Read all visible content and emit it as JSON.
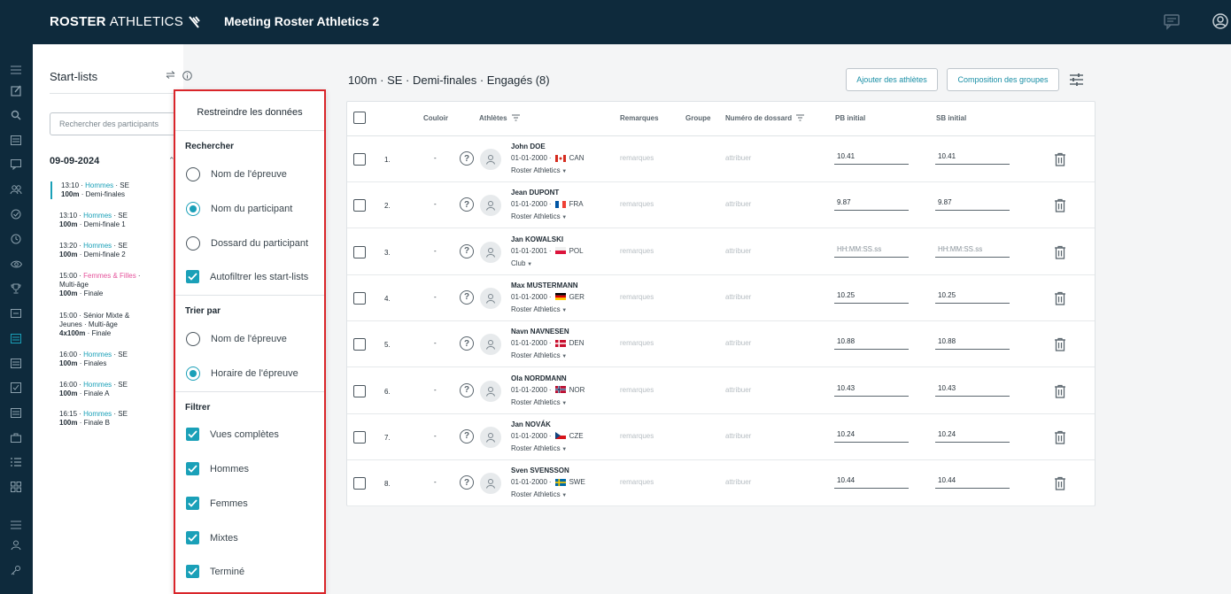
{
  "header": {
    "logo_bold": "ROSTER",
    "logo_light": "ATHLETICS",
    "meeting_title": "Meeting Roster Athletics 2"
  },
  "startlists": {
    "title": "Start-lists",
    "search_placeholder": "Rechercher des participants",
    "date": "09-09-2024",
    "events": [
      {
        "time": "13:10",
        "cat": "Hommes",
        "catType": "c",
        "age": "SE",
        "line2b": "100m",
        "line2": "Demi-finales",
        "selected": true
      },
      {
        "time": "13:10",
        "cat": "Hommes",
        "catType": "c",
        "age": "SE",
        "line2b": "100m",
        "line2": "Demi-finale 1"
      },
      {
        "time": "13:20",
        "cat": "Hommes",
        "catType": "c",
        "age": "SE",
        "line2b": "100m",
        "line2": "Demi-finale 2"
      },
      {
        "time": "15:00",
        "cat": "Femmes & Filles",
        "catType": "p",
        "age": "",
        "line1b": "Multi-âge",
        "line2b": "100m",
        "line2": "Finale"
      },
      {
        "time": "15:00",
        "cat": "Sénior Mixte &",
        "catType": "n",
        "age": "",
        "line1b": "Jeunes · Multi-âge",
        "line2b": "4x100m",
        "line2": "Finale"
      },
      {
        "time": "16:00",
        "cat": "Hommes",
        "catType": "c",
        "age": "SE",
        "line2b": "100m",
        "line2": "Finales"
      },
      {
        "time": "16:00",
        "cat": "Hommes",
        "catType": "c",
        "age": "SE",
        "line2b": "100m",
        "line2": "Finale A"
      },
      {
        "time": "16:15",
        "cat": "Hommes",
        "catType": "c",
        "age": "SE",
        "line2b": "100m",
        "line2": "Finale B"
      }
    ]
  },
  "main": {
    "title": "100m · SE · Demi-finales · Engagés (8)",
    "add_athletes": "Ajouter des athlètes",
    "compose_groups": "Composition des groupes",
    "columns": {
      "lane": "Couloir",
      "athletes": "Athlètes",
      "remarks": "Remarques",
      "group": "Groupe",
      "bib": "Numéro de dossard",
      "pb": "PB initial",
      "sb": "SB initial"
    },
    "rows": [
      {
        "num": "1.",
        "lane": "-",
        "name": "John DOE",
        "dob": "01-01-2000",
        "country": "CAN",
        "flag": "can",
        "club": "Roster Athletics",
        "remarks": "remarques",
        "bib": "attribuer",
        "pb": "10.41",
        "sb": "10.41"
      },
      {
        "num": "2.",
        "lane": "-",
        "name": "Jean DUPONT",
        "dob": "01-01-2000",
        "country": "FRA",
        "flag": "fra",
        "club": "Roster Athletics",
        "remarks": "remarques",
        "bib": "attribuer",
        "pb": "9.87",
        "sb": "9.87"
      },
      {
        "num": "3.",
        "lane": "-",
        "name": "Jan KOWALSKI",
        "dob": "01-01-2001",
        "country": "POL",
        "flag": "pol",
        "club": "Club",
        "remarks": "remarques",
        "bib": "attribuer",
        "pb": "HH:MM:SS.ss",
        "sb": "HH:MM:SS.ss",
        "placeholder": true
      },
      {
        "num": "4.",
        "lane": "-",
        "name": "Max MUSTERMANN",
        "dob": "01-01-2000",
        "country": "GER",
        "flag": "ger",
        "club": "Roster Athletics",
        "remarks": "remarques",
        "bib": "attribuer",
        "pb": "10.25",
        "sb": "10.25"
      },
      {
        "num": "5.",
        "lane": "-",
        "name": "Navn NAVNESEN",
        "dob": "01-01-2000",
        "country": "DEN",
        "flag": "den",
        "club": "Roster Athletics",
        "remarks": "remarques",
        "bib": "attribuer",
        "pb": "10.88",
        "sb": "10.88"
      },
      {
        "num": "6.",
        "lane": "-",
        "name": "Ola NORDMANN",
        "dob": "01-01-2000",
        "country": "NOR",
        "flag": "nor",
        "club": "Roster Athletics",
        "remarks": "remarques",
        "bib": "attribuer",
        "pb": "10.43",
        "sb": "10.43"
      },
      {
        "num": "7.",
        "lane": "-",
        "name": "Jan NOVÁK",
        "dob": "01-01-2000",
        "country": "CZE",
        "flag": "cze",
        "club": "Roster Athletics",
        "remarks": "remarques",
        "bib": "attribuer",
        "pb": "10.24",
        "sb": "10.24"
      },
      {
        "num": "8.",
        "lane": "-",
        "name": "Sven SVENSSON",
        "dob": "01-01-2000",
        "country": "SWE",
        "flag": "swe",
        "club": "Roster Athletics",
        "remarks": "remarques",
        "bib": "attribuer",
        "pb": "10.44",
        "sb": "10.44"
      }
    ]
  },
  "filter_panel": {
    "title": "Restreindre les données",
    "search_heading": "Rechercher",
    "search_options": [
      {
        "label": "Nom de l'épreuve",
        "type": "radio",
        "checked": false
      },
      {
        "label": "Nom du participant",
        "type": "radio",
        "checked": true
      },
      {
        "label": "Dossard du participant",
        "type": "radio",
        "checked": false
      },
      {
        "label": "Autofiltrer les start-lists",
        "type": "check",
        "checked": true
      }
    ],
    "sort_heading": "Trier par",
    "sort_options": [
      {
        "label": "Nom de l'épreuve",
        "type": "radio",
        "checked": false
      },
      {
        "label": "Horaire de l'épreuve",
        "type": "radio",
        "checked": true
      }
    ],
    "filter_heading": "Filtrer",
    "filter_options": [
      {
        "label": "Vues complètes",
        "type": "check",
        "checked": true
      },
      {
        "label": "Hommes",
        "type": "check",
        "checked": true
      },
      {
        "label": "Femmes",
        "type": "check",
        "checked": true
      },
      {
        "label": "Mixtes",
        "type": "check",
        "checked": true
      },
      {
        "label": "Terminé",
        "type": "check",
        "checked": true
      }
    ]
  },
  "colors": {
    "accent": "#1aa0b8",
    "navy": "#0e2a3c",
    "highlight": "#d9252a",
    "pink": "#e4519a"
  }
}
